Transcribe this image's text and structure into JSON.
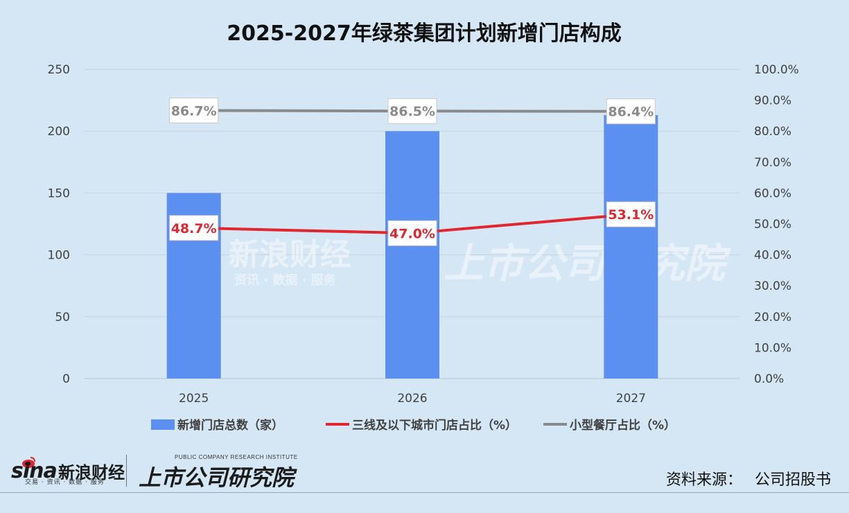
{
  "chart_data": {
    "type": "bar",
    "title": "2025-2027年绿茶集团计划新增门店构成",
    "categories": [
      "2025",
      "2026",
      "2027"
    ],
    "series": [
      {
        "name": "新增门店总数（家）",
        "kind": "bar",
        "axis": "left",
        "color": "#5b8ff0",
        "values": [
          150,
          200,
          213
        ]
      },
      {
        "name": "三线及以下城市门店占比（%）",
        "kind": "line",
        "axis": "right",
        "color": "#e0262e",
        "values": [
          48.7,
          47.0,
          53.1
        ],
        "labels": [
          "48.7%",
          "47.0%",
          "53.1%"
        ]
      },
      {
        "name": "小型餐厅占比（%）",
        "kind": "line",
        "axis": "right",
        "color": "#8a8a8a",
        "values": [
          86.7,
          86.5,
          86.4
        ],
        "labels": [
          "86.7%",
          "86.5%",
          "86.4%"
        ]
      }
    ],
    "y_left": {
      "min": 0,
      "max": 250,
      "ticks": [
        "0",
        "50",
        "100",
        "150",
        "200",
        "250"
      ]
    },
    "y_right": {
      "min": 0,
      "max": 100,
      "ticks": [
        "0.0%",
        "10.0%",
        "20.0%",
        "30.0%",
        "40.0%",
        "50.0%",
        "60.0%",
        "70.0%",
        "80.0%",
        "90.0%",
        "100.0%"
      ]
    },
    "grid": true,
    "legend_position": "bottom"
  },
  "watermark": {
    "sina_text": "新浪财经",
    "sina_sub": "资讯 · 数据 · 服务",
    "pc_text": "上市公司研究院"
  },
  "footer": {
    "sina_word": "sina",
    "sina_cn": "新浪财经",
    "sina_sub": "交易 · 资讯 · 数据 · 服务",
    "pc_en": "PUBLIC COMPANY RESEARCH INSTITUTE",
    "pc_cn": "上市公司研究院",
    "source_label": "资料来源：",
    "source_value": "公司招股书"
  },
  "colors": {
    "background": "#d5e6f4",
    "bar": "#5b8ff0",
    "line_red": "#e0262e",
    "line_gray": "#8a8a8a"
  }
}
